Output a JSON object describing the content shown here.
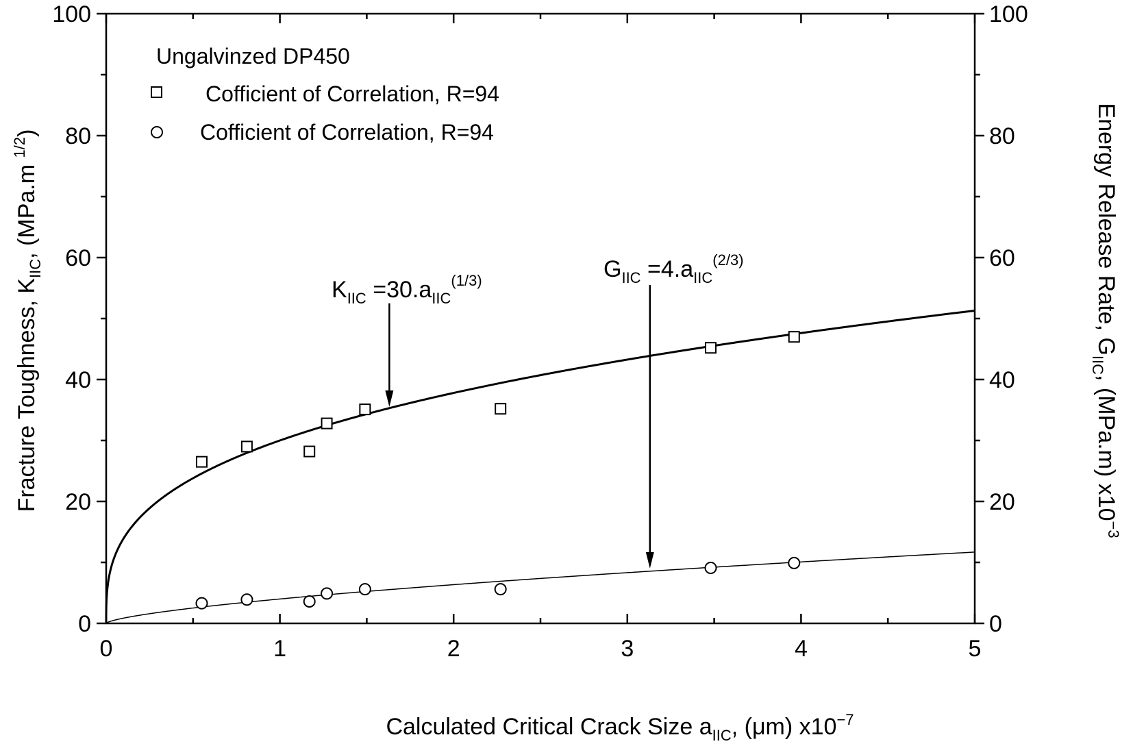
{
  "chart_data": {
    "type": "scatter",
    "title": "",
    "xlabel": {
      "main": "Calculated Critical Crack Size a",
      "sub": "IIC",
      "rest": ", (μm) x10",
      "sup": "−7"
    },
    "ylabel_left": {
      "main": "Fracture Toughness, K",
      "sub": "IIC",
      "rest": ", (MPa.m ",
      "sup": "1/2",
      "close": ")"
    },
    "ylabel_right": {
      "main": "Energy Release Rate, G",
      "sub": "IIC",
      "rest": ", (MPa.m) x10",
      "sup": "−3"
    },
    "xlim": [
      0,
      5
    ],
    "ylim_left": [
      0,
      100
    ],
    "ylim_right": [
      0,
      100
    ],
    "x_ticks": [
      "0",
      "1",
      "2",
      "3",
      "4",
      "5"
    ],
    "y_ticks_left": [
      "0",
      "20",
      "40",
      "60",
      "80",
      "100"
    ],
    "y_ticks_right": [
      "0",
      "20",
      "40",
      "60",
      "80",
      "100"
    ],
    "grid": false,
    "legend": {
      "title": "Ungalvinzed DP450",
      "position": "top-left",
      "entries": [
        {
          "marker": "square",
          "label": "Cofficient of Correlation, R=94"
        },
        {
          "marker": "circle",
          "label": "Cofficient of Correlation, R=94"
        }
      ]
    },
    "series": [
      {
        "marker": "square",
        "axis": "left",
        "x": [
          0.55,
          0.81,
          1.17,
          1.27,
          1.49,
          2.27,
          3.48,
          3.96
        ],
        "y": [
          26.5,
          29.0,
          28.2,
          32.8,
          35.1,
          35.2,
          45.2,
          47.0
        ]
      },
      {
        "marker": "circle",
        "axis": "right",
        "x": [
          0.55,
          0.81,
          1.17,
          1.27,
          1.49,
          2.27,
          3.48,
          3.96
        ],
        "y": [
          3.3,
          3.9,
          3.6,
          4.9,
          5.6,
          5.6,
          9.1,
          9.9
        ]
      }
    ],
    "fits": [
      {
        "equation": "K=30.a^(1/3)",
        "coef": 30,
        "exponent": 0.3333,
        "axis": "left",
        "stroke_width": 3
      },
      {
        "equation": "G=4.a^(2/3)",
        "coef": 4,
        "exponent": 0.6667,
        "axis": "right",
        "stroke_width": 1.5
      }
    ],
    "annotations": [
      {
        "main": "K",
        "sub": "IIC",
        "rest": " =30.a",
        "sub2": "IIC",
        "sup": "(1/3)",
        "arrow_x": 1.63,
        "arrow_from_y": 52.5,
        "arrow_to_y": 35.5
      },
      {
        "main": "G",
        "sub": "IIC",
        "rest": " =4.a",
        "sub2": "IIC",
        "sup": "(2/3)",
        "arrow_x": 3.13,
        "arrow_from_y": 55.5,
        "arrow_to_y": 9.0
      }
    ]
  }
}
